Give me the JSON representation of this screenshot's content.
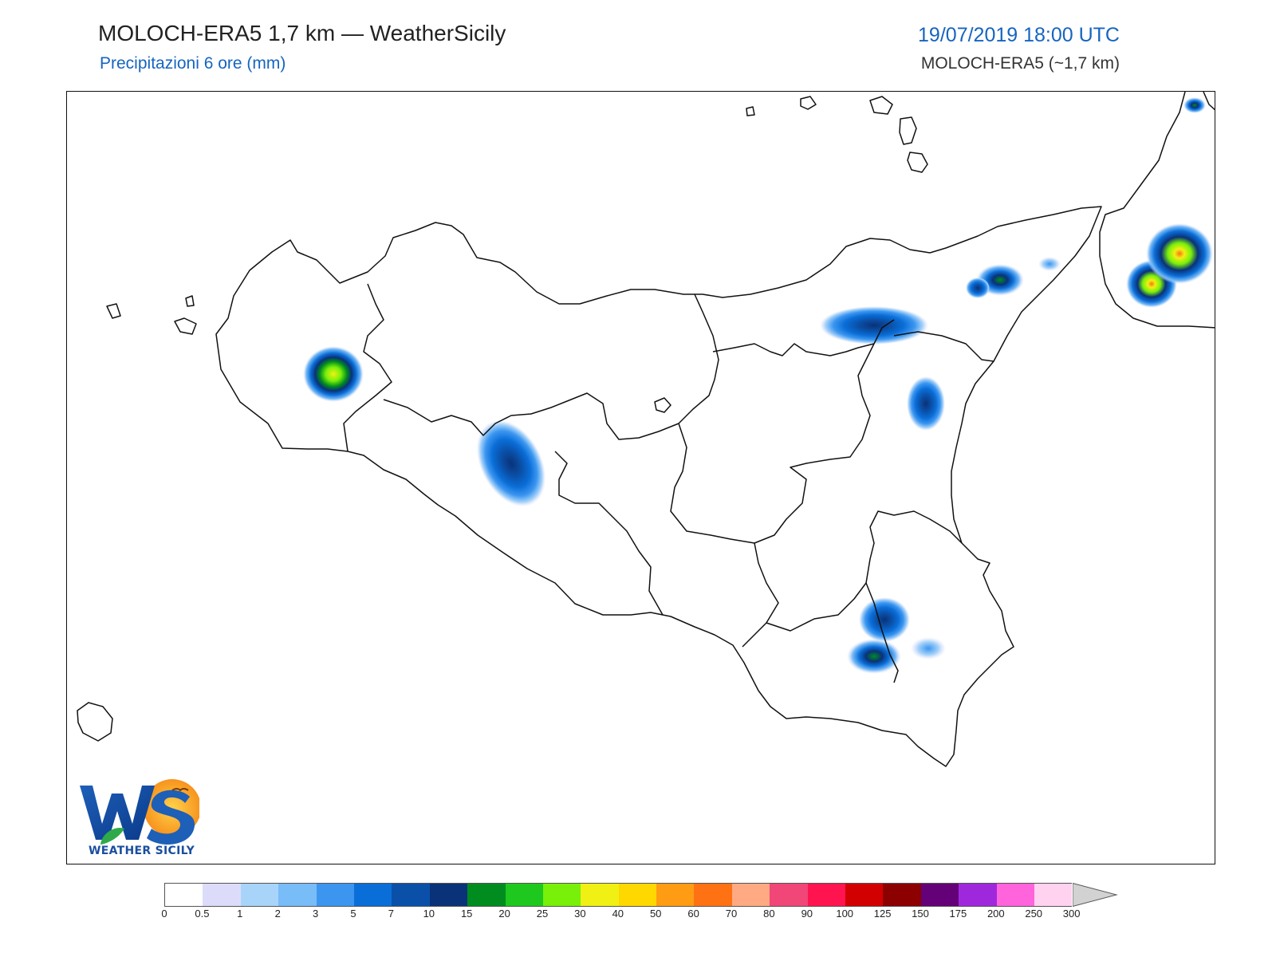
{
  "header": {
    "title": "MOLOCH-ERA5 1,7 km — WeatherSicily",
    "subtitle": "Precipitazioni 6 ore (mm)",
    "datetime": "19/07/2019 18:00 UTC",
    "model": "MOLOCH-ERA5 (~1,7 km)"
  },
  "logo": {
    "text": "WEATHER SICILY",
    "letters": "WS"
  },
  "legend": {
    "labels": [
      "0",
      "0.5",
      "1",
      "2",
      "3",
      "5",
      "7",
      "10",
      "15",
      "20",
      "25",
      "30",
      "40",
      "50",
      "60",
      "70",
      "80",
      "90",
      "100",
      "125",
      "150",
      "175",
      "200",
      "250",
      "300"
    ],
    "colors": [
      "#ffffff",
      "#dcdcfa",
      "#a8d4fa",
      "#78bcf8",
      "#3c96f0",
      "#0a6ed8",
      "#0a50a8",
      "#0a3278",
      "#008c1e",
      "#1ec81e",
      "#78f00a",
      "#f0f014",
      "#ffd800",
      "#ff9c14",
      "#ff7214",
      "#ffaa82",
      "#f04678",
      "#ff1450",
      "#d20000",
      "#8c0000",
      "#640078",
      "#a028dc",
      "#ff64dc",
      "#ffd2f0"
    ],
    "overflow_color": "#d2d2d2"
  }
}
